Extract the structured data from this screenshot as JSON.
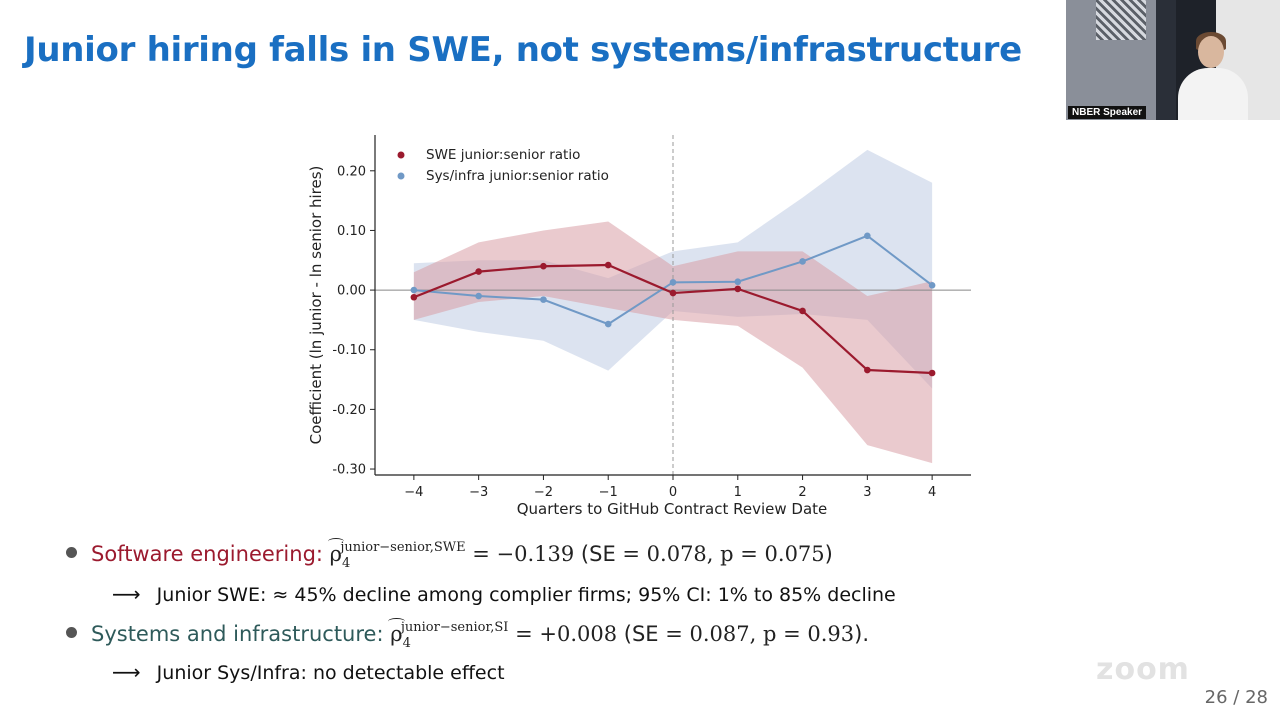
{
  "slide": {
    "title": "Junior hiring falls in SWE, not systems/infrastructure",
    "page_number": "26 / 28",
    "watermark": "zoom"
  },
  "video": {
    "speaker_label": "NBER Speaker"
  },
  "colors": {
    "title": "#1a6fc2",
    "swe": "#9b1a2e",
    "sys": "#7099c6",
    "swe_band": "#d89ea6",
    "sys_band": "#b9c8e2",
    "sys_text": "#2e5a5a"
  },
  "chart_data": {
    "type": "line",
    "xlabel": "Quarters to GitHub Contract Review Date",
    "ylabel": "Coefficient (ln junior - ln senior hires)",
    "x": [
      -4,
      -3,
      -2,
      -1,
      0,
      1,
      2,
      3,
      4
    ],
    "x_tick_labels": [
      "−4",
      "−3",
      "−2",
      "−1",
      "0",
      "1",
      "2",
      "3",
      "4"
    ],
    "y_ticks": [
      0.2,
      0.1,
      0.0,
      -0.1,
      -0.2,
      -0.3
    ],
    "y_tick_labels": [
      "0.20",
      "0.10",
      "0.00",
      "-0.10",
      "-0.20",
      "-0.30"
    ],
    "xlim": [
      -4.6,
      4.6
    ],
    "ylim": [
      -0.31,
      0.26
    ],
    "zero_line": true,
    "vertical_dashed_line_at": 0,
    "legend_position": "top-left",
    "series": [
      {
        "name": "SWE junior:senior ratio",
        "color": "#9b1a2e",
        "values": [
          -0.012,
          0.031,
          0.04,
          0.042,
          -0.005,
          0.002,
          -0.035,
          -0.134,
          -0.139
        ],
        "ci_lower": [
          -0.05,
          -0.02,
          -0.01,
          -0.03,
          -0.05,
          -0.06,
          -0.13,
          -0.26,
          -0.29
        ],
        "ci_upper": [
          0.03,
          0.08,
          0.1,
          0.115,
          0.04,
          0.065,
          0.065,
          -0.01,
          0.015
        ]
      },
      {
        "name": "Sys/infra junior:senior ratio",
        "color": "#7099c6",
        "values": [
          0.0,
          -0.01,
          -0.016,
          -0.057,
          0.013,
          0.014,
          0.048,
          0.091,
          0.008
        ],
        "ci_lower": [
          -0.05,
          -0.07,
          -0.085,
          -0.135,
          -0.035,
          -0.045,
          -0.04,
          -0.05,
          -0.165
        ],
        "ci_upper": [
          0.045,
          0.05,
          0.05,
          0.02,
          0.065,
          0.08,
          0.155,
          0.235,
          0.18
        ]
      }
    ]
  },
  "bullets": [
    {
      "label": "Software engineering:",
      "math_superscript": "junior−senior,SWE",
      "math_value": " = −0.139",
      "stats_open": " (SE ",
      "stats_math": "= 0.078, p = 0.075",
      "stats_close": ")",
      "sub": "Junior SWE: ≈ 45% decline among complier firms; 95% CI: 1% to 85% decline"
    },
    {
      "label": "Systems and infrastructure:",
      "math_superscript": "junior−senior,SI",
      "math_value": " = +0.008",
      "stats_open": " (SE ",
      "stats_math": "= 0.087, p = 0.93",
      "stats_close": ").",
      "sub": "Junior Sys/Infra: no detectable effect"
    }
  ]
}
